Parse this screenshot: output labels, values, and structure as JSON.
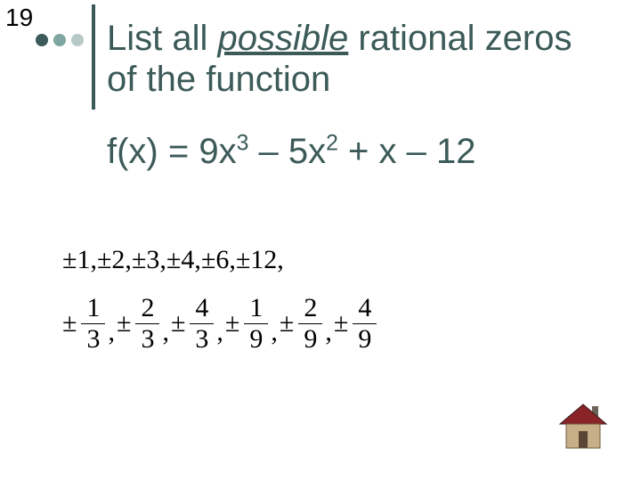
{
  "slide_number": "19",
  "dots": {
    "colors": [
      "#3b5a58",
      "#7fa6a2",
      "#b7c9c6"
    ]
  },
  "vline_color": "#3b5a58",
  "text_color": "#3b5a58",
  "prompt": {
    "part1": "List all ",
    "underlined": "possible",
    "part2": " rational zeros of the function"
  },
  "function": {
    "prefix": "f(x) = 9x",
    "exp1": "3",
    "mid1": " –  5x",
    "exp2": "2",
    "suffix": " + x – 12"
  },
  "answer_integers": "±1,±2,±3,±4,±6,±12,",
  "answer_fractions": [
    {
      "num": "1",
      "den": "3"
    },
    {
      "num": "2",
      "den": "3"
    },
    {
      "num": "4",
      "den": "3"
    },
    {
      "num": "1",
      "den": "9"
    },
    {
      "num": "2",
      "den": "9"
    },
    {
      "num": "4",
      "den": "9"
    }
  ],
  "pm": "±",
  "sep": ",",
  "home_icon": {
    "roof": "#8a2328",
    "wall": "#c7b088",
    "chimney": "#6d6459",
    "door": "#5a4634"
  }
}
